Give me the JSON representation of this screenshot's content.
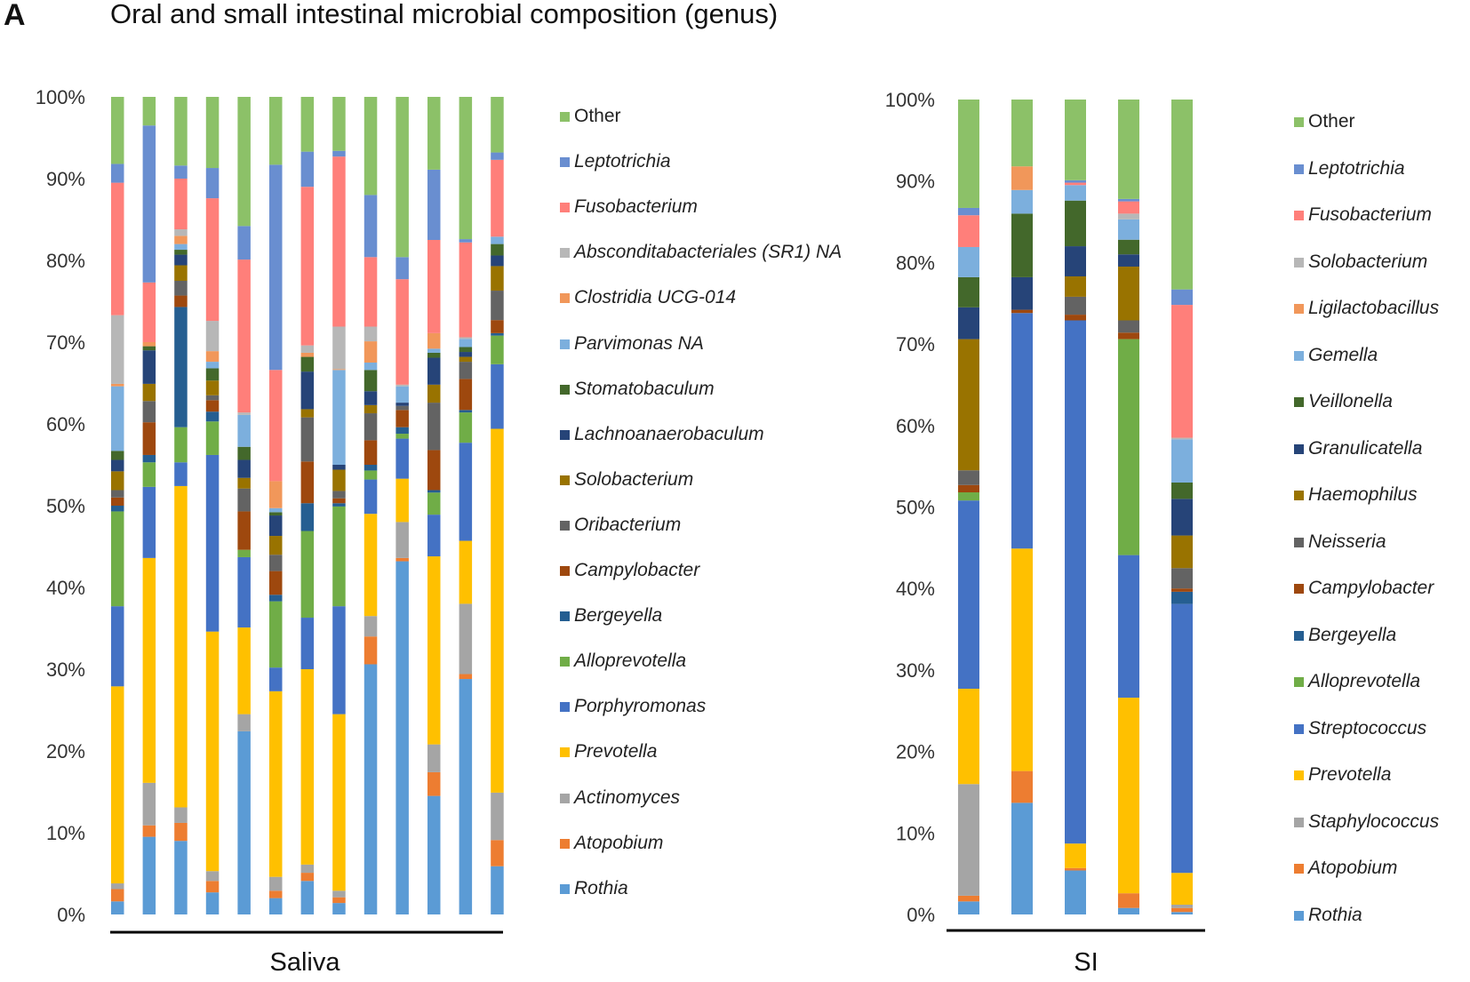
{
  "panel_letter": "A",
  "title": "Oral and small intestinal microbial composition (genus)",
  "chart_data": [
    {
      "type": "bar",
      "stacked": true,
      "group_label": "Saliva",
      "ylim": [
        0,
        100
      ],
      "yticks": [
        "0%",
        "10%",
        "20%",
        "30%",
        "40%",
        "50%",
        "60%",
        "70%",
        "80%",
        "90%",
        "100%"
      ],
      "grid": false,
      "legend_position": "right",
      "series": [
        {
          "name": "Rothia",
          "color": "#5b9bd5",
          "values": [
            1.6,
            9.5,
            9.0,
            2.7,
            22.4,
            2.0,
            4.1,
            1.4,
            30.6,
            43.2,
            14.5,
            28.8,
            5.9
          ]
        },
        {
          "name": "Atopobium",
          "color": "#ed7d31",
          "values": [
            1.5,
            1.4,
            2.2,
            1.4,
            0,
            0.9,
            1.0,
            0.7,
            3.4,
            0.4,
            2.9,
            0.6,
            3.2
          ]
        },
        {
          "name": "Actinomyces",
          "color": "#a5a5a5",
          "values": [
            0.7,
            5.2,
            1.9,
            1.2,
            2.1,
            1.7,
            1.0,
            0.8,
            2.5,
            4.4,
            3.4,
            8.6,
            5.8
          ]
        },
        {
          "name": "Prevotella",
          "color": "#ffc000",
          "values": [
            24.1,
            27.5,
            39.3,
            29.3,
            10.6,
            22.7,
            23.9,
            21.6,
            12.5,
            5.3,
            23.0,
            7.7,
            44.5
          ]
        },
        {
          "name": "Porphyromonas",
          "color": "#4472c4",
          "values": [
            9.8,
            8.7,
            2.9,
            21.6,
            8.6,
            2.9,
            6.3,
            13.2,
            4.2,
            4.9,
            5.1,
            12.0,
            7.9
          ]
        },
        {
          "name": "Alloprevotella",
          "color": "#70ad47",
          "values": [
            11.6,
            3.0,
            4.3,
            4.1,
            0.9,
            8.1,
            10.6,
            12.2,
            1.1,
            0.6,
            2.7,
            3.7,
            3.5
          ]
        },
        {
          "name": "Bergeyella",
          "color": "#255e91",
          "values": [
            0.7,
            0.9,
            14.7,
            1.2,
            0,
            0.8,
            3.4,
            0.4,
            0.7,
            0.8,
            0.3,
            0.3,
            0.3
          ]
        },
        {
          "name": "Campylobacter",
          "color": "#9e480e",
          "values": [
            1.0,
            4.0,
            1.4,
            1.4,
            4.7,
            2.9,
            5.1,
            0.6,
            3.0,
            2.1,
            4.9,
            3.8,
            1.6
          ]
        },
        {
          "name": "Oribacterium",
          "color": "#636363",
          "values": [
            0.9,
            2.6,
            1.8,
            0.6,
            2.8,
            2.0,
            5.4,
            0.9,
            3.3,
            0.5,
            5.8,
            2.1,
            3.6
          ]
        },
        {
          "name": "Solobacterium",
          "color": "#997300",
          "values": [
            2.3,
            2.1,
            1.9,
            1.8,
            1.3,
            2.3,
            1.0,
            2.6,
            1.0,
            0,
            2.2,
            0.6,
            3.0
          ]
        },
        {
          "name": "Lachnoanaerobaculum",
          "color": "#264478",
          "values": [
            1.4,
            4.1,
            1.3,
            0,
            2.2,
            2.5,
            4.6,
            0.6,
            1.7,
            0.4,
            3.3,
            0.6,
            1.3
          ]
        },
        {
          "name": "Stomatobaculum",
          "color": "#43682b",
          "values": [
            1.1,
            0.5,
            0.6,
            1.5,
            1.6,
            0.4,
            1.8,
            0,
            2.6,
            0,
            0.6,
            0.6,
            1.4
          ]
        },
        {
          "name": "Parvimonas NA",
          "color": "#7cafdd",
          "values": [
            7.9,
            0,
            0.7,
            0.8,
            3.9,
            0.5,
            0,
            11.6,
            0.9,
            2.0,
            0.5,
            1.0,
            0.9
          ]
        },
        {
          "name": "Clostridia UCG-014",
          "color": "#f1975a",
          "values": [
            0.3,
            0.5,
            1.0,
            1.3,
            0,
            3.3,
            0.5,
            0.1,
            2.6,
            0,
            1.9,
            0,
            0
          ]
        },
        {
          "name": "Absconditabacteriales (SR1) NA",
          "color": "#b7b7b7",
          "values": [
            8.4,
            0,
            0.8,
            3.7,
            0.3,
            0,
            0.9,
            5.2,
            1.8,
            0.2,
            0,
            0.2,
            0
          ]
        },
        {
          "name": "Fusobacterium",
          "color": "#ff7f7a",
          "values": [
            16.2,
            7.3,
            6.2,
            15.0,
            18.7,
            13.6,
            19.4,
            20.8,
            8.5,
            12.9,
            11.4,
            11.6,
            9.4
          ]
        },
        {
          "name": "Leptotrichia",
          "color": "#698ed0",
          "values": [
            2.3,
            19.2,
            1.6,
            3.7,
            4.1,
            25.1,
            4.3,
            0.7,
            7.6,
            2.7,
            8.6,
            0.4,
            0.9
          ]
        },
        {
          "name": "Other",
          "color": "#8cc168",
          "values": [
            8.2,
            3.5,
            8.4,
            8.7,
            15.8,
            8.3,
            6.7,
            6.6,
            12.0,
            19.6,
            8.9,
            17.4,
            6.8
          ]
        }
      ]
    },
    {
      "type": "bar",
      "stacked": true,
      "group_label": "SI",
      "ylim": [
        0,
        100
      ],
      "yticks": [
        "0%",
        "10%",
        "20%",
        "30%",
        "40%",
        "50%",
        "60%",
        "70%",
        "80%",
        "90%",
        "100%"
      ],
      "grid": false,
      "legend_position": "right",
      "series": [
        {
          "name": "Rothia",
          "color": "#5b9bd5",
          "values": [
            1.6,
            13.7,
            5.4,
            0.8,
            0.3
          ]
        },
        {
          "name": "Atopobium",
          "color": "#ed7d31",
          "values": [
            0.7,
            3.9,
            0.3,
            1.8,
            0.5
          ]
        },
        {
          "name": "Staphylococcus",
          "color": "#a5a5a5",
          "values": [
            13.7,
            0,
            0,
            0,
            0.4
          ]
        },
        {
          "name": "Prevotella",
          "color": "#ffc000",
          "values": [
            11.7,
            27.3,
            3.0,
            24.0,
            3.9
          ]
        },
        {
          "name": "Streptococcus",
          "color": "#4472c4",
          "values": [
            23.1,
            28.9,
            64.2,
            17.5,
            33.0
          ]
        },
        {
          "name": "Alloprevotella",
          "color": "#70ad47",
          "values": [
            1.0,
            0,
            0,
            26.5,
            0
          ]
        },
        {
          "name": "Bergeyella",
          "color": "#255e91",
          "values": [
            0,
            0,
            0,
            0,
            1.5
          ]
        },
        {
          "name": "Campylobacter",
          "color": "#9e480e",
          "values": [
            0.9,
            0.4,
            0.7,
            0.8,
            0.4
          ]
        },
        {
          "name": "Neisseria",
          "color": "#636363",
          "values": [
            1.8,
            0,
            2.2,
            1.5,
            2.5
          ]
        },
        {
          "name": "Haemophilus",
          "color": "#997300",
          "values": [
            16.1,
            0,
            2.5,
            6.6,
            4.0
          ]
        },
        {
          "name": "Granulicatella",
          "color": "#264478",
          "values": [
            3.9,
            4.0,
            3.7,
            1.5,
            4.5
          ]
        },
        {
          "name": "Veillonella",
          "color": "#43682b",
          "values": [
            3.7,
            7.8,
            5.6,
            1.8,
            2.0
          ]
        },
        {
          "name": "Gemella",
          "color": "#7cafdd",
          "values": [
            3.7,
            2.9,
            1.9,
            2.5,
            5.3
          ]
        },
        {
          "name": "Ligilactobacillus",
          "color": "#f1975a",
          "values": [
            0,
            2.9,
            0,
            0,
            0
          ]
        },
        {
          "name": "Solobacterium",
          "color": "#b7b7b7",
          "values": [
            0,
            0,
            0,
            0.7,
            0.2
          ]
        },
        {
          "name": "Fusobacterium",
          "color": "#ff7f7a",
          "values": [
            3.9,
            0,
            0.3,
            1.5,
            16.3
          ]
        },
        {
          "name": "Leptotrichia",
          "color": "#698ed0",
          "values": [
            0.9,
            0,
            0.3,
            0.3,
            1.9
          ]
        },
        {
          "name": "Other",
          "color": "#8cc168",
          "values": [
            13.3,
            8.2,
            9.9,
            12.2,
            23.3
          ]
        }
      ]
    }
  ]
}
